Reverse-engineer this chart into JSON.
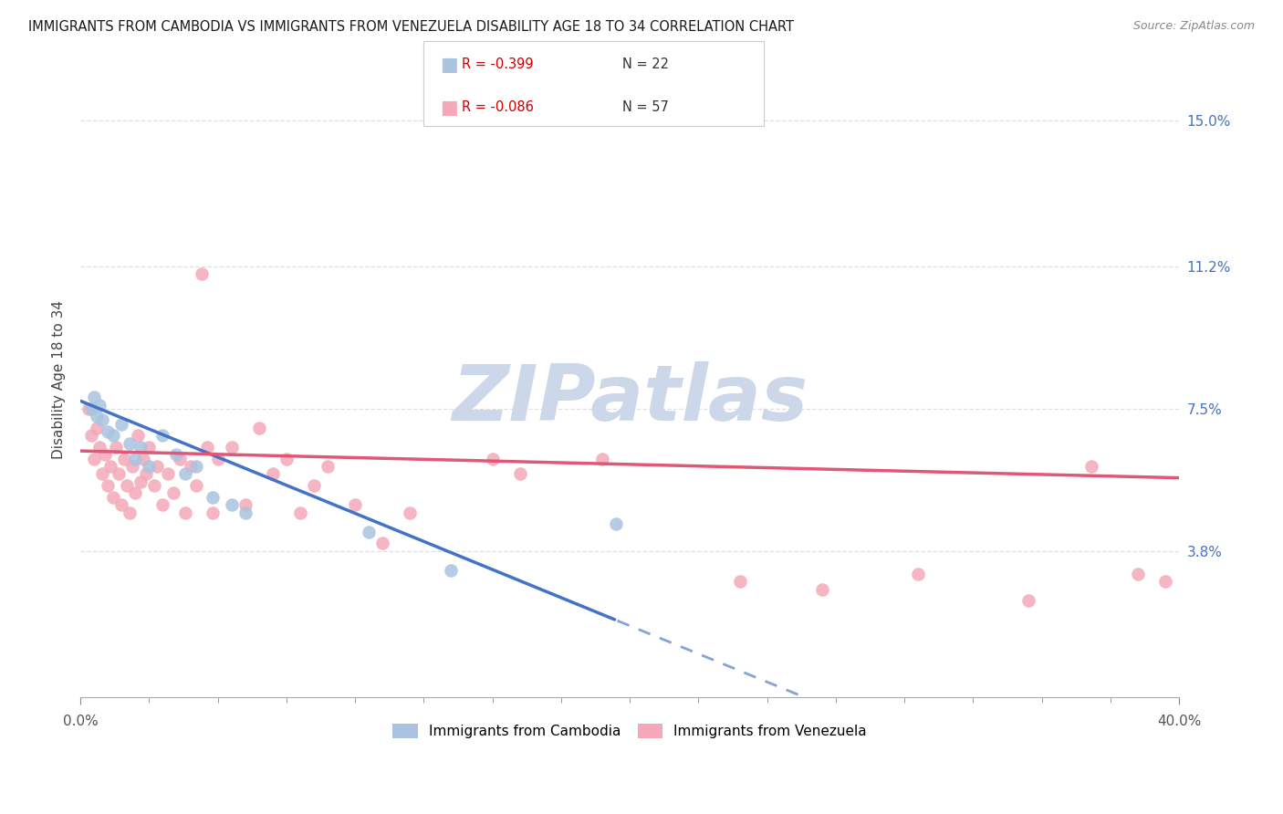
{
  "title": "IMMIGRANTS FROM CAMBODIA VS IMMIGRANTS FROM VENEZUELA DISABILITY AGE 18 TO 34 CORRELATION CHART",
  "source": "Source: ZipAtlas.com",
  "ylabel": "Disability Age 18 to 34",
  "ytick_labels": [
    "3.8%",
    "7.5%",
    "11.2%",
    "15.0%"
  ],
  "ytick_values": [
    0.038,
    0.075,
    0.112,
    0.15
  ],
  "xlim": [
    0.0,
    0.4
  ],
  "ylim": [
    0.0,
    0.165
  ],
  "legend_r_cambodia": "R = -0.399",
  "legend_n_cambodia": "N = 22",
  "legend_r_venezuela": "R = -0.086",
  "legend_n_venezuela": "N = 57",
  "label_cambodia": "Immigrants from Cambodia",
  "label_venezuela": "Immigrants from Venezuela",
  "color_cambodia": "#aac4e0",
  "color_venezuela": "#f4a8b8",
  "trendline_cambodia": "#4472c4",
  "trendline_venezuela": "#e05878",
  "watermark_color": "#ccd8ea",
  "cambodia_x": [
    0.004,
    0.005,
    0.006,
    0.007,
    0.008,
    0.01,
    0.012,
    0.015,
    0.018,
    0.02,
    0.022,
    0.025,
    0.03,
    0.035,
    0.038,
    0.042,
    0.048,
    0.055,
    0.06,
    0.105,
    0.135,
    0.195
  ],
  "cambodia_y": [
    0.075,
    0.078,
    0.073,
    0.076,
    0.072,
    0.069,
    0.068,
    0.071,
    0.066,
    0.062,
    0.065,
    0.06,
    0.068,
    0.063,
    0.058,
    0.06,
    0.052,
    0.05,
    0.048,
    0.043,
    0.033,
    0.045
  ],
  "venezuela_x": [
    0.003,
    0.004,
    0.005,
    0.006,
    0.007,
    0.008,
    0.009,
    0.01,
    0.011,
    0.012,
    0.013,
    0.014,
    0.015,
    0.016,
    0.017,
    0.018,
    0.019,
    0.02,
    0.021,
    0.022,
    0.023,
    0.024,
    0.025,
    0.027,
    0.028,
    0.03,
    0.032,
    0.034,
    0.036,
    0.038,
    0.04,
    0.042,
    0.044,
    0.046,
    0.048,
    0.05,
    0.055,
    0.06,
    0.065,
    0.07,
    0.075,
    0.08,
    0.085,
    0.09,
    0.1,
    0.11,
    0.12,
    0.15,
    0.16,
    0.19,
    0.24,
    0.27,
    0.305,
    0.345,
    0.368,
    0.385,
    0.395
  ],
  "venezuela_y": [
    0.075,
    0.068,
    0.062,
    0.07,
    0.065,
    0.058,
    0.063,
    0.055,
    0.06,
    0.052,
    0.065,
    0.058,
    0.05,
    0.062,
    0.055,
    0.048,
    0.06,
    0.053,
    0.068,
    0.056,
    0.062,
    0.058,
    0.065,
    0.055,
    0.06,
    0.05,
    0.058,
    0.053,
    0.062,
    0.048,
    0.06,
    0.055,
    0.11,
    0.065,
    0.048,
    0.062,
    0.065,
    0.05,
    0.07,
    0.058,
    0.062,
    0.048,
    0.055,
    0.06,
    0.05,
    0.04,
    0.048,
    0.062,
    0.058,
    0.062,
    0.03,
    0.028,
    0.032,
    0.025,
    0.06,
    0.032,
    0.03
  ]
}
